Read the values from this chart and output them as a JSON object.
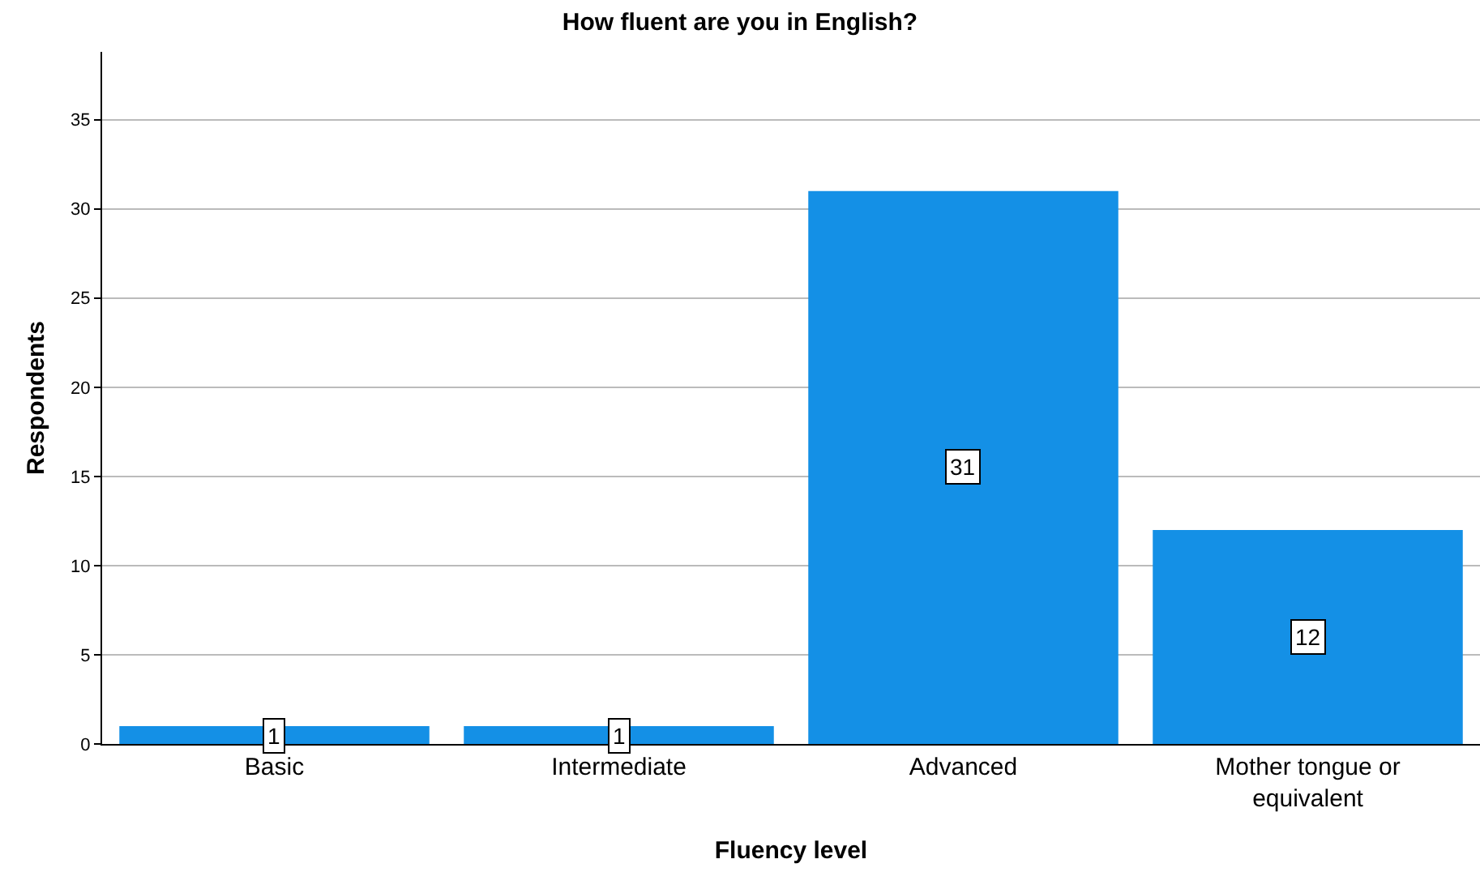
{
  "chart_data": {
    "type": "bar",
    "title": "How fluent are you in English?",
    "xlabel": "Fluency level",
    "ylabel": "Respondents",
    "categories": [
      "Basic",
      "Intermediate",
      "Advanced",
      "Mother tongue or equivalent"
    ],
    "values": [
      1,
      1,
      31,
      12
    ],
    "color": "#1490e6",
    "ylim": [
      0,
      38.8
    ],
    "yticks": [
      0,
      5,
      10,
      15,
      20,
      25,
      30,
      35
    ],
    "grid": "y",
    "data_labels": true,
    "legend": false
  }
}
